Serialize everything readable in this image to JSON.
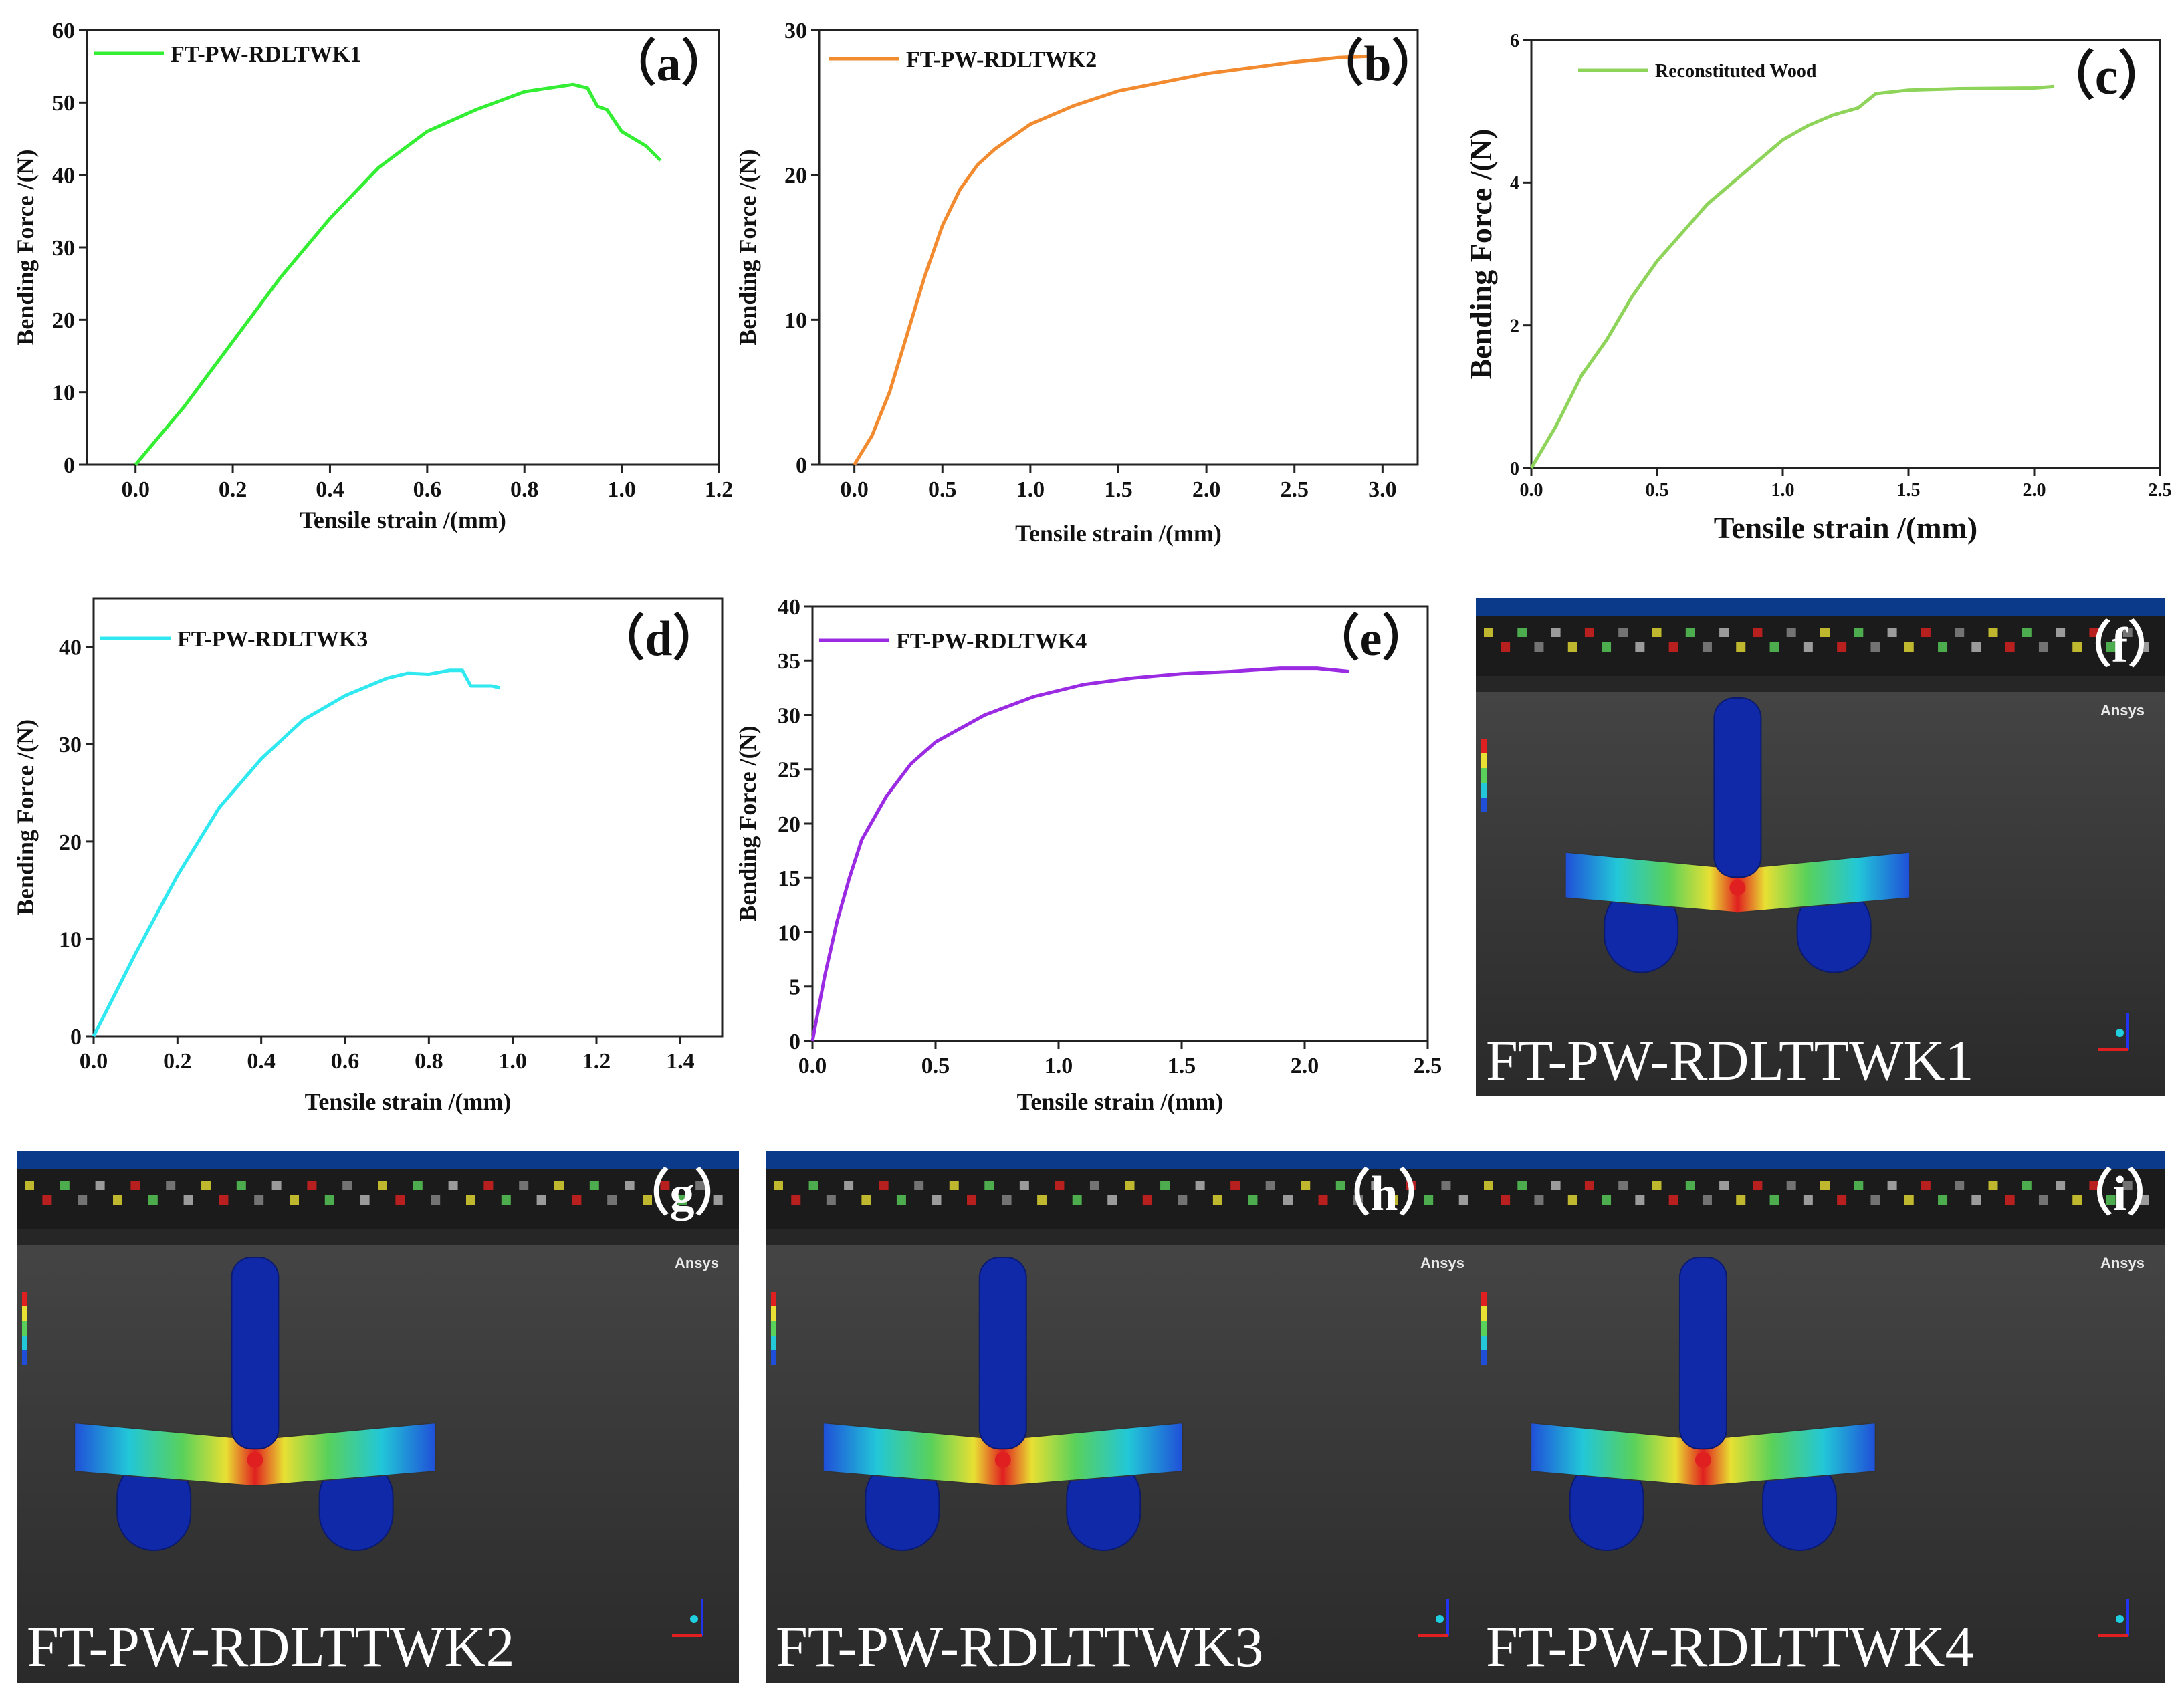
{
  "chart_data": [
    {
      "type": "line",
      "panel_label": "（a）",
      "legend": "FT-PW-RDLTWK1",
      "color": "#33ee33",
      "xlabel": "Tensile strain  /(mm)",
      "ylabel": "Bending Force  /(N)",
      "xlim": [
        -0.1,
        1.2
      ],
      "ylim": [
        0,
        60
      ],
      "xticks": [
        0.0,
        0.2,
        0.4,
        0.6,
        0.8,
        1.0,
        1.2
      ],
      "xtick_labels": [
        "0.0",
        "0.2",
        "0.4",
        "0.6",
        "0.8",
        "1.0",
        "1.2"
      ],
      "yticks": [
        0,
        10,
        20,
        30,
        40,
        50,
        60
      ],
      "ytick_labels": [
        "0",
        "10",
        "20",
        "30",
        "40",
        "50",
        "60"
      ],
      "x": [
        0.0,
        0.1,
        0.2,
        0.3,
        0.4,
        0.5,
        0.6,
        0.7,
        0.8,
        0.85,
        0.9,
        0.93,
        0.95,
        0.97,
        1.0,
        1.05,
        1.08
      ],
      "y": [
        0,
        8,
        17,
        26,
        34,
        41,
        46,
        49,
        51.5,
        52,
        52.5,
        52,
        49.5,
        49,
        46,
        44,
        42
      ]
    },
    {
      "type": "line",
      "panel_label": "（b）",
      "legend": "FT-PW-RDLTWK2",
      "color": "#f28b30",
      "xlabel": "Tensile strain  /(mm)",
      "ylabel": "Bending Force  /(N)",
      "xlim": [
        -0.2,
        3.2
      ],
      "ylim": [
        0,
        30
      ],
      "xticks": [
        0.0,
        0.5,
        1.0,
        1.5,
        2.0,
        2.5,
        3.0
      ],
      "xtick_labels": [
        "0.0",
        "0.5",
        "1.0",
        "1.5",
        "2.0",
        "2.5",
        "3.0"
      ],
      "yticks": [
        0,
        10,
        20,
        30
      ],
      "ytick_labels": [
        "0",
        "10",
        "20",
        "30"
      ],
      "x": [
        0.0,
        0.1,
        0.2,
        0.3,
        0.4,
        0.5,
        0.6,
        0.7,
        0.8,
        1.0,
        1.25,
        1.5,
        2.0,
        2.5,
        2.75,
        2.95
      ],
      "y": [
        0,
        2,
        5,
        9,
        13,
        16.5,
        19,
        20.7,
        21.8,
        23.5,
        24.8,
        25.8,
        27,
        27.8,
        28.1,
        28.2
      ]
    },
    {
      "type": "line",
      "panel_label": "（c）",
      "legend": "Reconstituted Wood",
      "color": "#8fd45a",
      "xlabel": "Tensile strain  /(mm)",
      "ylabel": "Bending Force  /(N)",
      "xlim": [
        0,
        2.5
      ],
      "ylim": [
        0,
        6
      ],
      "xticks": [
        0.0,
        0.5,
        1.0,
        1.5,
        2.0,
        2.5
      ],
      "xtick_labels": [
        "0.0",
        "0.5",
        "1.0",
        "1.5",
        "2.0",
        "2.5"
      ],
      "yticks": [
        0,
        2,
        4,
        6
      ],
      "ytick_labels": [
        "0",
        "2",
        "4",
        "6"
      ],
      "x": [
        0.0,
        0.1,
        0.2,
        0.3,
        0.4,
        0.5,
        0.6,
        0.7,
        0.8,
        0.9,
        1.0,
        1.1,
        1.2,
        1.3,
        1.37,
        1.5,
        1.7,
        2.0,
        2.08
      ],
      "y": [
        0,
        0.6,
        1.3,
        1.8,
        2.4,
        2.9,
        3.3,
        3.7,
        4.0,
        4.3,
        4.6,
        4.8,
        4.95,
        5.05,
        5.25,
        5.3,
        5.32,
        5.33,
        5.35
      ]
    },
    {
      "type": "line",
      "panel_label": "（d）",
      "legend": "FT-PW-RDLTWK3",
      "color": "#30e8f0",
      "xlabel": "Tensile strain  /(mm)",
      "ylabel": "Bending Force  /(N)",
      "xlim": [
        0,
        1.5
      ],
      "ylim": [
        0,
        45
      ],
      "xticks": [
        0.0,
        0.2,
        0.4,
        0.6,
        0.8,
        1.0,
        1.2,
        1.4
      ],
      "xtick_labels": [
        "0.0",
        "0.2",
        "0.4",
        "0.6",
        "0.8",
        "1.0",
        "1.2",
        "1.4"
      ],
      "yticks": [
        0,
        10,
        20,
        30,
        40
      ],
      "ytick_labels": [
        "0",
        "10",
        "20",
        "30",
        "40"
      ],
      "x": [
        0.0,
        0.1,
        0.2,
        0.3,
        0.4,
        0.5,
        0.6,
        0.7,
        0.75,
        0.8,
        0.85,
        0.88,
        0.9,
        0.95,
        0.97
      ],
      "y": [
        0,
        8.5,
        16.5,
        23.5,
        28.5,
        32.5,
        35,
        36.8,
        37.3,
        37.2,
        37.6,
        37.6,
        36,
        36,
        35.8
      ]
    },
    {
      "type": "line",
      "panel_label": "（e）",
      "legend": "FT-PW-RDLTWK4",
      "color": "#9a2be2",
      "xlabel": "Tensile strain  /(mm)",
      "ylabel": "Bending Force  /(N)",
      "xlim": [
        0,
        2.5
      ],
      "ylim": [
        0,
        40
      ],
      "xticks": [
        0.0,
        0.5,
        1.0,
        1.5,
        2.0,
        2.5
      ],
      "xtick_labels": [
        "0.0",
        "0.5",
        "1.0",
        "1.5",
        "2.0",
        "2.5"
      ],
      "yticks": [
        0,
        5,
        10,
        15,
        20,
        25,
        30,
        35,
        40
      ],
      "ytick_labels": [
        "0",
        "5",
        "10",
        "15",
        "20",
        "25",
        "30",
        "35",
        "40"
      ],
      "x": [
        0.0,
        0.05,
        0.1,
        0.15,
        0.2,
        0.3,
        0.4,
        0.5,
        0.7,
        0.9,
        1.1,
        1.3,
        1.5,
        1.7,
        1.9,
        2.05,
        2.18
      ],
      "y": [
        0,
        6,
        11,
        15,
        18.5,
        22.5,
        25.5,
        27.5,
        30,
        31.7,
        32.8,
        33.4,
        33.8,
        34,
        34.3,
        34.3,
        34
      ]
    }
  ],
  "simulations": [
    {
      "panel_label": "（f）",
      "caption": "FT-PW-RDLTTWK1",
      "brand": "Ansys"
    },
    {
      "panel_label": "（g）",
      "caption": "FT-PW-RDLTTWK2",
      "brand": "Ansys"
    },
    {
      "panel_label": "（h）",
      "caption": "FT-PW-RDLTTWK3",
      "brand": "Ansys"
    },
    {
      "panel_label": "（i）",
      "caption": "FT-PW-RDLTTWK4",
      "brand": "Ansys"
    }
  ],
  "colors": {
    "sim_bg_top": "#4a4a4a",
    "sim_bg_bottom": "#2a2a2a",
    "sim_toolbar": "#1b1b1b",
    "sim_titlebar": "#0b3a8a",
    "fixture_blue": "#1029a8",
    "stress_blue": "#1f4fd8",
    "stress_cyan": "#22c7d8",
    "stress_green": "#5ad15a",
    "stress_yellow": "#e8e033",
    "stress_red": "#e02020"
  }
}
